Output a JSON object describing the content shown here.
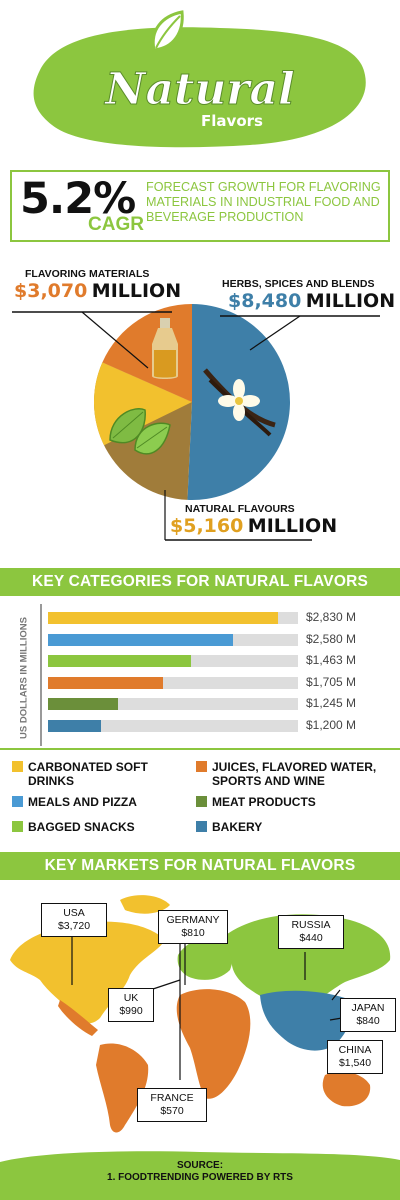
{
  "header": {
    "title": "Natural",
    "subtitle": "Flavors"
  },
  "cagr": {
    "value": "5.2%",
    "label": "CAGR",
    "description": "Forecast growth for flavoring materials in industrial food and beverage production"
  },
  "pie": {
    "flavoring": {
      "title": "FLAVORING MATERIALS",
      "amount": "$3,070",
      "unit": "MILLION"
    },
    "herbs": {
      "title": "HERBS, SPICES AND BLENDS",
      "amount": "$8,480",
      "unit": "MILLION"
    },
    "natural": {
      "title": "NATURAL FLAVOURS",
      "amount": "$5,160",
      "unit": "MILLION"
    }
  },
  "sections": {
    "categories": "KEY CATEGORIES FOR NATURAL FLAVORS",
    "markets": "KEY MARKETS FOR NATURAL FLAVORS"
  },
  "bars": {
    "axis_label": "US DOLLARS IN MILLIONS"
  },
  "legend": {
    "carbonated": "CARBONATED SOFT DRINKS",
    "juices": "JUICES, FLAVORED WATER, SPORTS AND WINE",
    "meals": "MEALS AND PIZZA",
    "meat": "MEAT PRODUCTS",
    "snacks": "BAGGED SNACKS",
    "bakery": "BAKERY"
  },
  "markets": {
    "usa": {
      "name": "USA",
      "value": "$3,720"
    },
    "germany": {
      "name": "GERMANY",
      "value": "$810"
    },
    "russia": {
      "name": "RUSSIA",
      "value": "$440"
    },
    "uk": {
      "name": "UK",
      "value": "$990"
    },
    "japan": {
      "name": "JAPAN",
      "value": "$840"
    },
    "china": {
      "name": "CHINA",
      "value": "$1,540"
    },
    "france": {
      "name": "FRANCE",
      "value": "$570"
    }
  },
  "source": {
    "title": "SOURCE:",
    "text": "1. FOODTRENDING POWERED BY RTS"
  },
  "colors": {
    "green": "#8cc63f",
    "yellow": "#f2c12e",
    "blue": "#4a9ad4",
    "lightgreen": "#8cc63f",
    "orange": "#e07b2c",
    "darkgreen": "#6b8f3a",
    "steel": "#3e7fa8"
  },
  "chart_data": [
    {
      "type": "pie",
      "slices": [
        {
          "label": "HERBS, SPICES AND BLENDS",
          "value": 8480,
          "color": "#3e7fa8"
        },
        {
          "label": "NATURAL FLAVOURS",
          "value": 5160,
          "color": "#a07c3a"
        },
        {
          "label": "FLAVORING MATERIALS",
          "value": 3070,
          "color": "#e07b2c"
        }
      ]
    },
    {
      "type": "bar",
      "orientation": "horizontal",
      "ylabel": "US DOLLARS IN MILLIONS",
      "categories": [
        "CARBONATED SOFT DRINKS",
        "MEALS AND PIZZA",
        "BAGGED SNACKS",
        "JUICES, FLAVORED WATER, SPORTS AND WINE",
        "MEAT PRODUCTS",
        "BAKERY"
      ],
      "values": [
        2830,
        2580,
        1463,
        1705,
        1245,
        1200
      ],
      "fill_fraction": [
        0.92,
        0.74,
        0.57,
        0.46,
        0.28,
        0.21
      ],
      "value_labels": [
        "$2,830 M",
        "$2,580 M",
        "$1,463 M",
        "$1,705 M",
        "$1,245 M",
        "$1,200 M"
      ],
      "colors": [
        "#f2c12e",
        "#4a9ad4",
        "#8cc63f",
        "#e07b2c",
        "#6b8f3a",
        "#3e7fa8"
      ]
    }
  ]
}
